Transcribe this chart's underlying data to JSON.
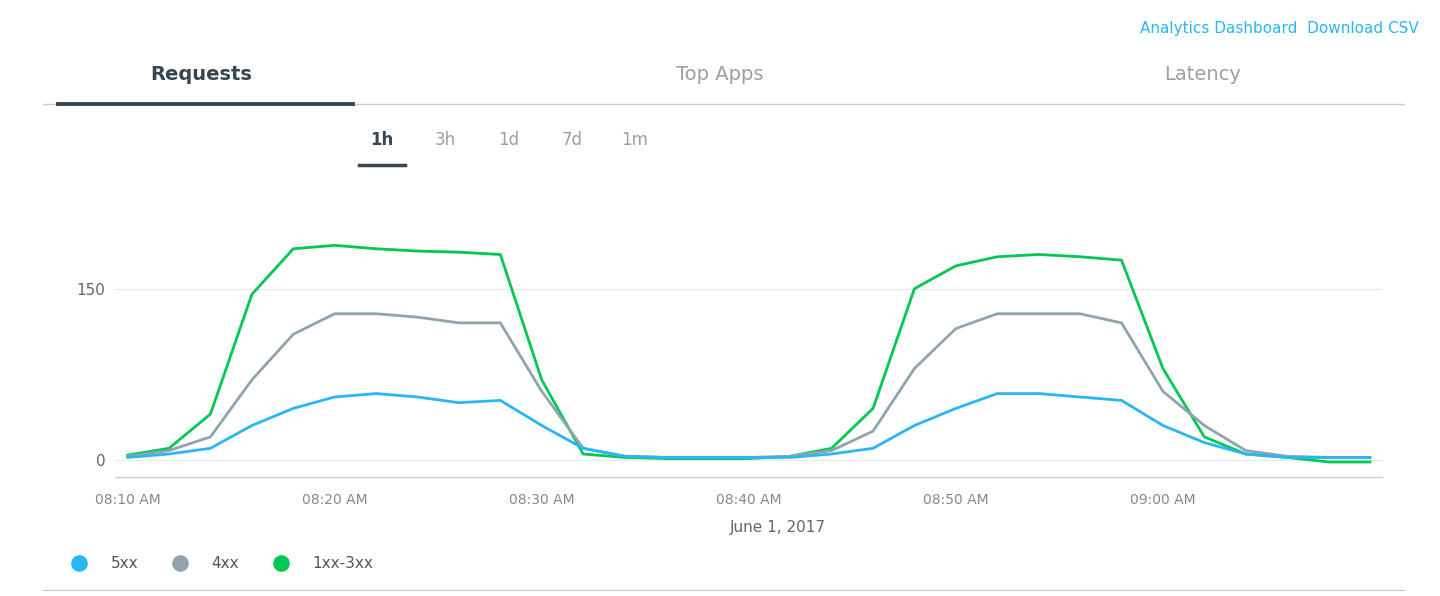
{
  "title_tab_requests": "Requests",
  "title_tab_top_apps": "Top Apps",
  "title_tab_latency": "Latency",
  "top_right_text": "Analytics Dashboard  Download CSV",
  "duration_buttons": [
    "1h",
    "3h",
    "1d",
    "7d",
    "1m"
  ],
  "active_button": "1h",
  "xlabel": "June 1, 2017",
  "yticks": [
    0,
    150
  ],
  "xtick_labels": [
    "08:10 AM",
    "08:20 AM",
    "08:30 AM",
    "08:40 AM",
    "08:50 AM",
    "09:00 AM"
  ],
  "x_values": [
    0,
    1,
    2,
    3,
    4,
    5,
    6,
    7,
    8,
    9,
    10,
    11,
    12,
    13,
    14,
    15,
    16,
    17,
    18,
    19,
    20,
    21,
    22,
    23,
    24,
    25,
    26,
    27,
    28,
    29,
    30
  ],
  "series_5xx": [
    2,
    5,
    10,
    30,
    45,
    55,
    58,
    55,
    50,
    52,
    30,
    10,
    3,
    2,
    2,
    2,
    2,
    5,
    10,
    30,
    45,
    58,
    58,
    55,
    52,
    30,
    15,
    5,
    2,
    2,
    2
  ],
  "series_4xx": [
    3,
    8,
    20,
    70,
    110,
    128,
    128,
    125,
    120,
    120,
    60,
    10,
    3,
    2,
    2,
    2,
    3,
    8,
    25,
    80,
    115,
    128,
    128,
    128,
    120,
    60,
    30,
    8,
    3,
    2,
    2
  ],
  "series_1xx3xx": [
    4,
    10,
    40,
    145,
    185,
    188,
    185,
    183,
    182,
    180,
    70,
    5,
    2,
    1,
    1,
    1,
    3,
    10,
    45,
    150,
    170,
    178,
    180,
    178,
    175,
    80,
    20,
    5,
    2,
    -2,
    -2
  ],
  "color_5xx": "#29b6f6",
  "color_4xx": "#90a4ae",
  "color_1xx3xx": "#00c853",
  "bg_color": "#ffffff",
  "plot_bg_color": "#ffffff",
  "grid_color": "#e8e8e8",
  "tab_underline_color": "#37474f",
  "tab_active_color": "#37474f",
  "tab_inactive_color": "#9e9e9e",
  "top_right_color": "#29b6f6",
  "active_duration_color": "#37474f",
  "inactive_duration_color": "#9e9e9e",
  "ylim": [
    -15,
    215
  ],
  "xlim": [
    -0.3,
    30.3
  ],
  "xtick_positions": [
    0,
    5,
    10,
    15,
    20,
    25
  ]
}
